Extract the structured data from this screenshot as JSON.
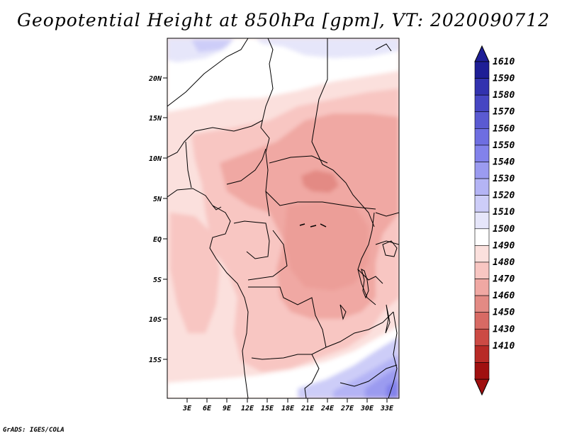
{
  "title": "Geopotential Height at 850hPa [gpm], VT: 2020090712",
  "credit": "GrADS: IGES/COLA",
  "map": {
    "lon_labels": [
      "3E",
      "6E",
      "9E",
      "12E",
      "15E",
      "18E",
      "21E",
      "24E",
      "27E",
      "30E",
      "33E"
    ],
    "lat_labels": [
      "20N",
      "15N",
      "10N",
      "5N",
      "EQ",
      "5S",
      "10S",
      "15S"
    ]
  },
  "colorbar": {
    "labels": [
      "1610",
      "1590",
      "1580",
      "1570",
      "1560",
      "1550",
      "1540",
      "1530",
      "1520",
      "1510",
      "1500",
      "1490",
      "1480",
      "1470",
      "1460",
      "1450",
      "1430",
      "1410"
    ],
    "colors": [
      "#1e1e96",
      "#3232af",
      "#4646c3",
      "#5a5ad2",
      "#6e6ee1",
      "#8282eb",
      "#9b9bf0",
      "#b4b4f5",
      "#cdcdf8",
      "#e6e6fa",
      "#ffffff",
      "#fbe0dd",
      "#f8c6c2",
      "#f0a8a3",
      "#e38a84",
      "#d86a64",
      "#cc4a44",
      "#b82a26",
      "#a01010"
    ]
  },
  "fields": {
    "cap_color_top": "#1e1e96",
    "cap_color_bottom": "#a01010"
  }
}
